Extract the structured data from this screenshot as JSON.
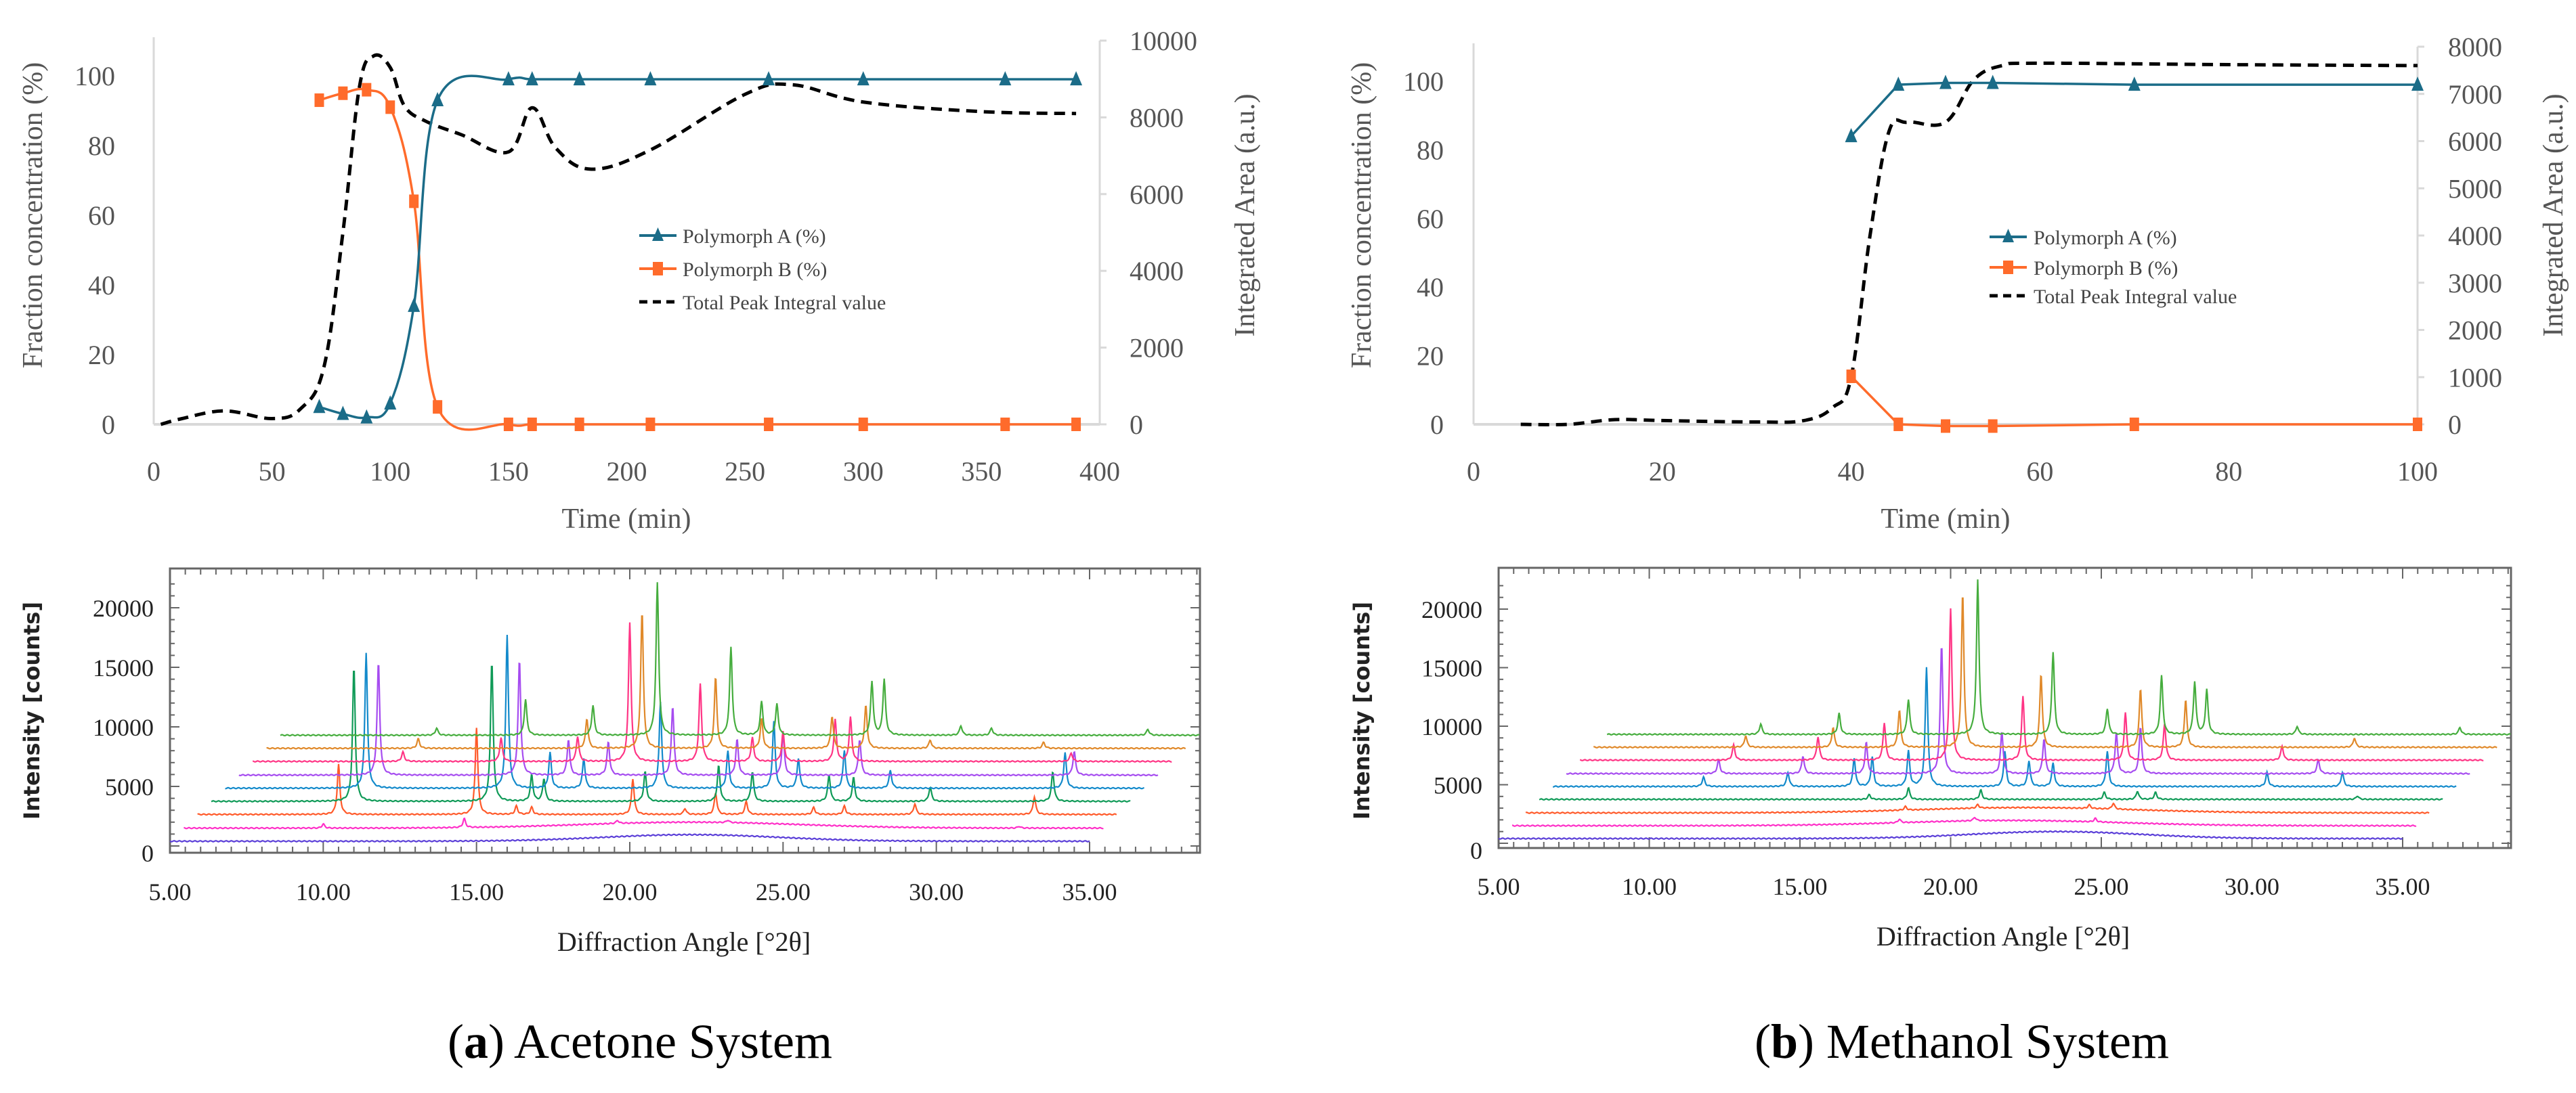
{
  "chart_data": [
    {
      "id": "a_top",
      "type": "line",
      "xlabel": "Time (min)",
      "ylabel": "Fraction concentration (%)",
      "y2label": "Integrated Area (a.u.)",
      "xlim": [
        0,
        400
      ],
      "xticks": [
        0,
        50,
        100,
        150,
        200,
        250,
        300,
        350,
        400
      ],
      "ylim": [
        0,
        110
      ],
      "yticks": [
        0,
        20,
        40,
        60,
        80,
        100
      ],
      "y2lim": [
        0,
        10000
      ],
      "y2ticks": [
        0,
        2000,
        4000,
        6000,
        8000,
        10000
      ],
      "legend_position": "center",
      "series": [
        {
          "name": "Polymorph A (%)",
          "axis": "left",
          "color": "#1b6c88",
          "marker": "triangle",
          "smooth": true,
          "x": [
            70,
            80,
            90,
            100,
            110,
            120,
            150,
            160,
            180,
            210,
            260,
            300,
            360,
            390
          ],
          "y": [
            5,
            3,
            2,
            6,
            34,
            93,
            99,
            99,
            99,
            99,
            99,
            99,
            99,
            99
          ]
        },
        {
          "name": "Polymorph B (%)",
          "axis": "left",
          "color": "#ff6b2b",
          "marker": "square",
          "smooth": true,
          "x": [
            70,
            80,
            90,
            100,
            110,
            120,
            150,
            160,
            180,
            210,
            260,
            300,
            360,
            390
          ],
          "y": [
            93,
            95,
            96,
            91,
            64,
            5,
            0,
            0,
            0,
            0,
            0,
            0,
            0,
            0
          ]
        },
        {
          "name": "Total Peak Integral value",
          "axis": "right",
          "color": "#000000",
          "marker": "none",
          "dashed": true,
          "smooth": true,
          "x": [
            3,
            12,
            30,
            50,
            62,
            72,
            80,
            87,
            93,
            100,
            106,
            115,
            130,
            150,
            160,
            170,
            185,
            210,
            250,
            270,
            300,
            350,
            390
          ],
          "y": [
            0,
            150,
            350,
            150,
            400,
            1500,
            5000,
            8800,
            9600,
            9300,
            8300,
            7900,
            7550,
            7100,
            8250,
            7200,
            6650,
            7150,
            8600,
            8850,
            8400,
            8150,
            8100
          ]
        }
      ]
    },
    {
      "id": "b_top",
      "type": "line",
      "xlabel": "Time (min)",
      "ylabel": "Fraction concentration (%)",
      "y2label": "Integrated Area (a.u.)",
      "xlim": [
        0,
        100
      ],
      "xticks": [
        0,
        20,
        40,
        60,
        80,
        100
      ],
      "ylim": [
        0,
        110
      ],
      "yticks": [
        0,
        20,
        40,
        60,
        80,
        100
      ],
      "y2lim": [
        0,
        8000
      ],
      "y2ticks": [
        0,
        1000,
        2000,
        3000,
        4000,
        5000,
        6000,
        7000,
        8000
      ],
      "legend_position": "center",
      "series": [
        {
          "name": "Polymorph A (%)",
          "axis": "left",
          "color": "#1b6c88",
          "marker": "triangle",
          "smooth": false,
          "x": [
            40,
            45,
            50,
            55,
            70,
            100
          ],
          "y": [
            84,
            99,
            99.5,
            99.5,
            99,
            99
          ]
        },
        {
          "name": "Polymorph B (%)",
          "axis": "left",
          "color": "#ff6b2b",
          "marker": "square",
          "smooth": false,
          "x": [
            40,
            45,
            50,
            55,
            70,
            100
          ],
          "y": [
            14,
            0,
            -0.5,
            -0.5,
            0,
            0
          ]
        },
        {
          "name": "Total Peak Integral value",
          "axis": "right",
          "color": "#000000",
          "marker": "none",
          "dashed": true,
          "smooth": true,
          "x": [
            5,
            10,
            15,
            20,
            30,
            35,
            38,
            40,
            42,
            44,
            46,
            50,
            53,
            56,
            60,
            80,
            100
          ],
          "y": [
            0,
            0,
            100,
            80,
            50,
            80,
            350,
            1000,
            4000,
            6200,
            6400,
            6400,
            7300,
            7600,
            7650,
            7620,
            7600
          ]
        }
      ]
    },
    {
      "id": "a_xrd",
      "type": "line",
      "xlabel": "Diffraction Angle [°2θ]",
      "ylabel": "Intensity [counts]",
      "xlim": [
        5,
        38.6
      ],
      "xticks": [
        "5.00",
        "10.00",
        "15.00",
        "20.00",
        "25.00",
        "30.00",
        "35.00"
      ],
      "ylim": [
        -300,
        23000
      ],
      "yticks": [
        0,
        5000,
        10000,
        15000,
        20000
      ],
      "trace_shift_deg": 0.45,
      "traces": [
        {
          "color": "#5b3fd8",
          "baseline": 400,
          "humps": [
            [
              22,
              550,
              4
            ]
          ],
          "peaks": []
        },
        {
          "color": "#ff2fc8",
          "baseline": 1500,
          "humps": [
            [
              22,
              500,
              5
            ]
          ],
          "peaks": [
            [
              10,
              350
            ],
            [
              14.6,
              750
            ],
            [
              19.6,
              250
            ],
            [
              23.2,
              200
            ],
            [
              32.7,
              150
            ]
          ]
        },
        {
          "color": "#ff5a2a",
          "baseline": 2650,
          "humps": [],
          "peaks": [
            [
              10.5,
              4200
            ],
            [
              15,
              7300
            ],
            [
              16.3,
              700
            ],
            [
              16.8,
              600
            ],
            [
              20.1,
              3000
            ],
            [
              21.8,
              500
            ],
            [
              22.8,
              1800
            ],
            [
              23.8,
              1100
            ],
            [
              26,
              600
            ],
            [
              27,
              700
            ],
            [
              29.3,
              900
            ],
            [
              33.2,
              1500
            ]
          ]
        },
        {
          "color": "#0f9a57",
          "baseline": 3750,
          "humps": [],
          "peaks": [
            [
              11,
              11300
            ],
            [
              15.5,
              11800
            ],
            [
              16.8,
              2200
            ],
            [
              17.2,
              1900
            ],
            [
              20.5,
              2500
            ],
            [
              22.9,
              3000
            ],
            [
              24,
              2500
            ],
            [
              26.5,
              2200
            ],
            [
              27.3,
              2000
            ],
            [
              29.8,
              1200
            ],
            [
              33.8,
              2500
            ]
          ]
        },
        {
          "color": "#138acb",
          "baseline": 4850,
          "humps": [],
          "peaks": [
            [
              11.4,
              11400
            ],
            [
              16,
              12900
            ],
            [
              17.4,
              3000
            ],
            [
              18.5,
              2500
            ],
            [
              21,
              7200
            ],
            [
              23.2,
              3100
            ],
            [
              24.7,
              5600
            ],
            [
              25.5,
              2500
            ],
            [
              27,
              3200
            ],
            [
              28.5,
              1500
            ],
            [
              34.2,
              3000
            ]
          ]
        },
        {
          "color": "#a64cf0",
          "baseline": 5950,
          "humps": [],
          "peaks": [
            [
              11.8,
              9500
            ],
            [
              16.4,
              9700
            ],
            [
              18,
              3000
            ],
            [
              19.3,
              2800
            ],
            [
              21.4,
              5800
            ],
            [
              23.5,
              3000
            ],
            [
              25,
              3500
            ],
            [
              27.5,
              3000
            ],
            [
              34.5,
              2000
            ]
          ]
        },
        {
          "color": "#ff3585",
          "baseline": 7100,
          "humps": [],
          "peaks": [
            [
              12.6,
              800
            ],
            [
              15.8,
              2000
            ],
            [
              18.3,
              2100
            ],
            [
              20,
              11700
            ],
            [
              22.3,
              6500
            ],
            [
              24,
              2000
            ],
            [
              25,
              2500
            ],
            [
              26.7,
              3500
            ],
            [
              27.2,
              3700
            ],
            [
              34.4,
              700
            ]
          ]
        },
        {
          "color": "#e0892a",
          "baseline": 8200,
          "humps": [],
          "peaks": [
            [
              13.1,
              800
            ],
            [
              18.6,
              2500
            ],
            [
              20.4,
              11500
            ],
            [
              22.8,
              6000
            ],
            [
              24.3,
              2500
            ],
            [
              26.6,
              2700
            ],
            [
              27.7,
              3600
            ],
            [
              29.8,
              700
            ],
            [
              33.5,
              500
            ]
          ]
        },
        {
          "color": "#46ad3e",
          "baseline": 9300,
          "humps": [],
          "peaks": [
            [
              13.7,
              600
            ],
            [
              16.6,
              3000
            ],
            [
              18.8,
              2500
            ],
            [
              20.9,
              12800
            ],
            [
              23.3,
              7400
            ],
            [
              24.3,
              2800
            ],
            [
              24.8,
              2600
            ],
            [
              27.9,
              4500
            ],
            [
              28.3,
              4700
            ],
            [
              30.8,
              800
            ],
            [
              31.8,
              600
            ],
            [
              36.9,
              500
            ]
          ]
        }
      ]
    },
    {
      "id": "b_xrd",
      "type": "line",
      "xlabel": "Diffraction Angle [°2θ]",
      "ylabel": "Intensity [counts]",
      "xlim": [
        5,
        38.6
      ],
      "xticks": [
        "5.00",
        "10.00",
        "15.00",
        "20.00",
        "25.00",
        "30.00",
        "35.00"
      ],
      "ylim": [
        -300,
        23000
      ],
      "yticks": [
        0,
        5000,
        10000,
        15000,
        20000
      ],
      "trace_shift_deg": 0.45,
      "traces": [
        {
          "color": "#5b3fd8",
          "baseline": 400,
          "humps": [
            [
              23.5,
              600,
              4
            ]
          ],
          "peaks": []
        },
        {
          "color": "#ff2fc8",
          "baseline": 1500,
          "humps": [
            [
              22,
              450,
              5
            ]
          ],
          "peaks": [
            [
              18.3,
              300
            ],
            [
              20.8,
              300
            ],
            [
              24.8,
              300
            ]
          ]
        },
        {
          "color": "#ff5a2a",
          "baseline": 2600,
          "humps": [
            [
              22.5,
              450,
              5
            ]
          ],
          "peaks": [
            [
              18.5,
              300
            ],
            [
              20.9,
              300
            ],
            [
              24.6,
              300
            ],
            [
              25.4,
              500
            ]
          ]
        },
        {
          "color": "#0f9a57",
          "baseline": 3750,
          "humps": [],
          "peaks": [
            [
              17.3,
              400
            ],
            [
              18.6,
              1000
            ],
            [
              21,
              800
            ],
            [
              25.1,
              600
            ],
            [
              26.2,
              700
            ],
            [
              26.8,
              600
            ],
            [
              33.5,
              300
            ]
          ]
        },
        {
          "color": "#138acb",
          "baseline": 4850,
          "humps": [],
          "peaks": [
            [
              11.8,
              800
            ],
            [
              14.6,
              1200
            ],
            [
              16.8,
              2400
            ],
            [
              17.4,
              2500
            ],
            [
              18.6,
              3000
            ],
            [
              19.2,
              10200
            ],
            [
              21.8,
              3000
            ],
            [
              22.6,
              2200
            ],
            [
              23.4,
              2000
            ],
            [
              25.2,
              3000
            ],
            [
              30.5,
              1200
            ],
            [
              33,
              1200
            ]
          ]
        },
        {
          "color": "#a64cf0",
          "baseline": 5950,
          "humps": [],
          "peaks": [
            [
              12.3,
              1200
            ],
            [
              15.1,
              1500
            ],
            [
              17.2,
              2700
            ],
            [
              19.7,
              11100
            ],
            [
              21.7,
              3600
            ],
            [
              23.1,
              3000
            ],
            [
              25.5,
              3500
            ],
            [
              26.3,
              4000
            ],
            [
              32.2,
              1200
            ]
          ]
        },
        {
          "color": "#ff3585",
          "baseline": 7100,
          "humps": [],
          "peaks": [
            [
              12.8,
              1300
            ],
            [
              15.6,
              2000
            ],
            [
              17.8,
              3200
            ],
            [
              20,
              13000
            ],
            [
              22.4,
              5500
            ],
            [
              25.8,
              4100
            ],
            [
              27.1,
              3100
            ],
            [
              31,
              1200
            ]
          ]
        },
        {
          "color": "#e0892a",
          "baseline": 8200,
          "humps": [],
          "peaks": [
            [
              13.2,
              1000
            ],
            [
              16.1,
              1700
            ],
            [
              18.3,
              3200
            ],
            [
              20.4,
              13200
            ],
            [
              23,
              6300
            ],
            [
              26.3,
              5000
            ],
            [
              27.8,
              4100
            ],
            [
              33.4,
              800
            ]
          ]
        },
        {
          "color": "#46ad3e",
          "baseline": 9300,
          "humps": [],
          "peaks": [
            [
              13.7,
              900
            ],
            [
              16.3,
              1800
            ],
            [
              18.6,
              3000
            ],
            [
              20.9,
              13200
            ],
            [
              23.4,
              7000
            ],
            [
              25.2,
              2200
            ],
            [
              27,
              5000
            ],
            [
              28.1,
              4500
            ],
            [
              28.5,
              3800
            ],
            [
              31.5,
              700
            ],
            [
              36.9,
              600
            ]
          ]
        }
      ]
    }
  ],
  "captions": [
    {
      "label": "a",
      "text": "Acetone System"
    },
    {
      "label": "b",
      "text": "Methanol System"
    }
  ]
}
